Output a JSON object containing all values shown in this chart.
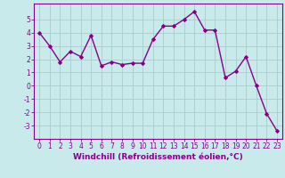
{
  "x": [
    0,
    1,
    2,
    3,
    4,
    5,
    6,
    7,
    8,
    9,
    10,
    11,
    12,
    13,
    14,
    15,
    16,
    17,
    18,
    19,
    20,
    21,
    22,
    23
  ],
  "y": [
    4.0,
    3.0,
    1.8,
    2.6,
    2.2,
    3.8,
    1.5,
    1.8,
    1.6,
    1.7,
    1.7,
    3.5,
    4.5,
    4.5,
    5.0,
    5.6,
    4.2,
    4.2,
    0.6,
    1.1,
    2.2,
    0.0,
    -2.1,
    -3.4
  ],
  "line_color": "#880088",
  "marker": "D",
  "marker_size": 2.0,
  "linewidth": 1.0,
  "bg_color": "#c8eaea",
  "grid_color": "#aacccc",
  "xlabel": "Windchill (Refroidissement éolien,°C)",
  "xlabel_color": "#880088",
  "xlabel_fontsize": 6.5,
  "tick_color": "#880088",
  "tick_fontsize": 5.5,
  "ylim": [
    -4.0,
    6.2
  ],
  "yticks": [
    -3,
    -2,
    -1,
    0,
    1,
    2,
    3,
    4,
    5
  ],
  "xticks": [
    0,
    1,
    2,
    3,
    4,
    5,
    6,
    7,
    8,
    9,
    10,
    11,
    12,
    13,
    14,
    15,
    16,
    17,
    18,
    19,
    20,
    21,
    22,
    23
  ]
}
